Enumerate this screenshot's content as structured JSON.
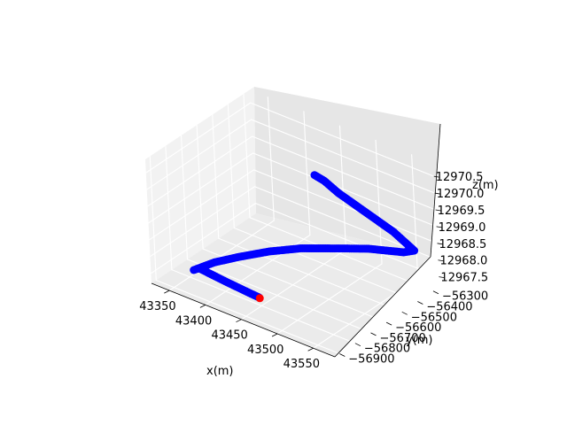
{
  "chart_data": {
    "type": "scatter",
    "projection": "3d",
    "title": "",
    "xlabel": "x(m)",
    "ylabel": "y(m)",
    "zlabel": "z(m)",
    "xlim": [
      43325,
      43580
    ],
    "ylim": [
      -56930,
      -56260
    ],
    "zlim": [
      12967.2,
      12970.9
    ],
    "x_ticks": [
      "43350",
      "43400",
      "43450",
      "43500",
      "43550"
    ],
    "y_ticks": [
      "−56300",
      "−56400",
      "−56500",
      "−56600",
      "−56700",
      "−56800",
      "−56900"
    ],
    "z_ticks": [
      "12967.5",
      "12968.0",
      "12968.5",
      "12969.0",
      "12969.5",
      "12970.0",
      "12970.5"
    ],
    "grid": true,
    "series": [
      {
        "color": "#0000ff",
        "points": [
          {
            "x": 43358,
            "y": -56808,
            "z": 12967.5
          },
          {
            "x": 43366,
            "y": -56712,
            "z": 12967.5
          },
          {
            "x": 43380,
            "y": -56622,
            "z": 12967.5
          },
          {
            "x": 43404,
            "y": -56535,
            "z": 12967.6
          },
          {
            "x": 43432,
            "y": -56460,
            "z": 12967.7
          },
          {
            "x": 43470,
            "y": -56388,
            "z": 12967.8
          },
          {
            "x": 43500,
            "y": -56340,
            "z": 12967.9
          },
          {
            "x": 43540,
            "y": -56296,
            "z": 12968.0
          },
          {
            "x": 43556,
            "y": -56300,
            "z": 12968.2
          },
          {
            "x": 43545,
            "y": -56375,
            "z": 12968.9
          },
          {
            "x": 43520,
            "y": -56470,
            "z": 12969.7
          },
          {
            "x": 43505,
            "y": -56530,
            "z": 12970.2
          },
          {
            "x": 43495,
            "y": -56570,
            "z": 12970.6
          },
          {
            "x": 43488,
            "y": -56598,
            "z": 12970.8
          }
        ]
      },
      {
        "color": "#0000ff",
        "points": [
          {
            "x": 43362,
            "y": -56785,
            "z": 12967.5
          },
          {
            "x": 43400,
            "y": -56800,
            "z": 12967.5
          },
          {
            "x": 43438,
            "y": -56812,
            "z": 12967.5
          },
          {
            "x": 43450,
            "y": -56815,
            "z": 12967.5
          }
        ]
      },
      {
        "color": "#ff0000",
        "points": [
          {
            "x": 43452,
            "y": -56818,
            "z": 12967.5
          }
        ]
      }
    ]
  }
}
